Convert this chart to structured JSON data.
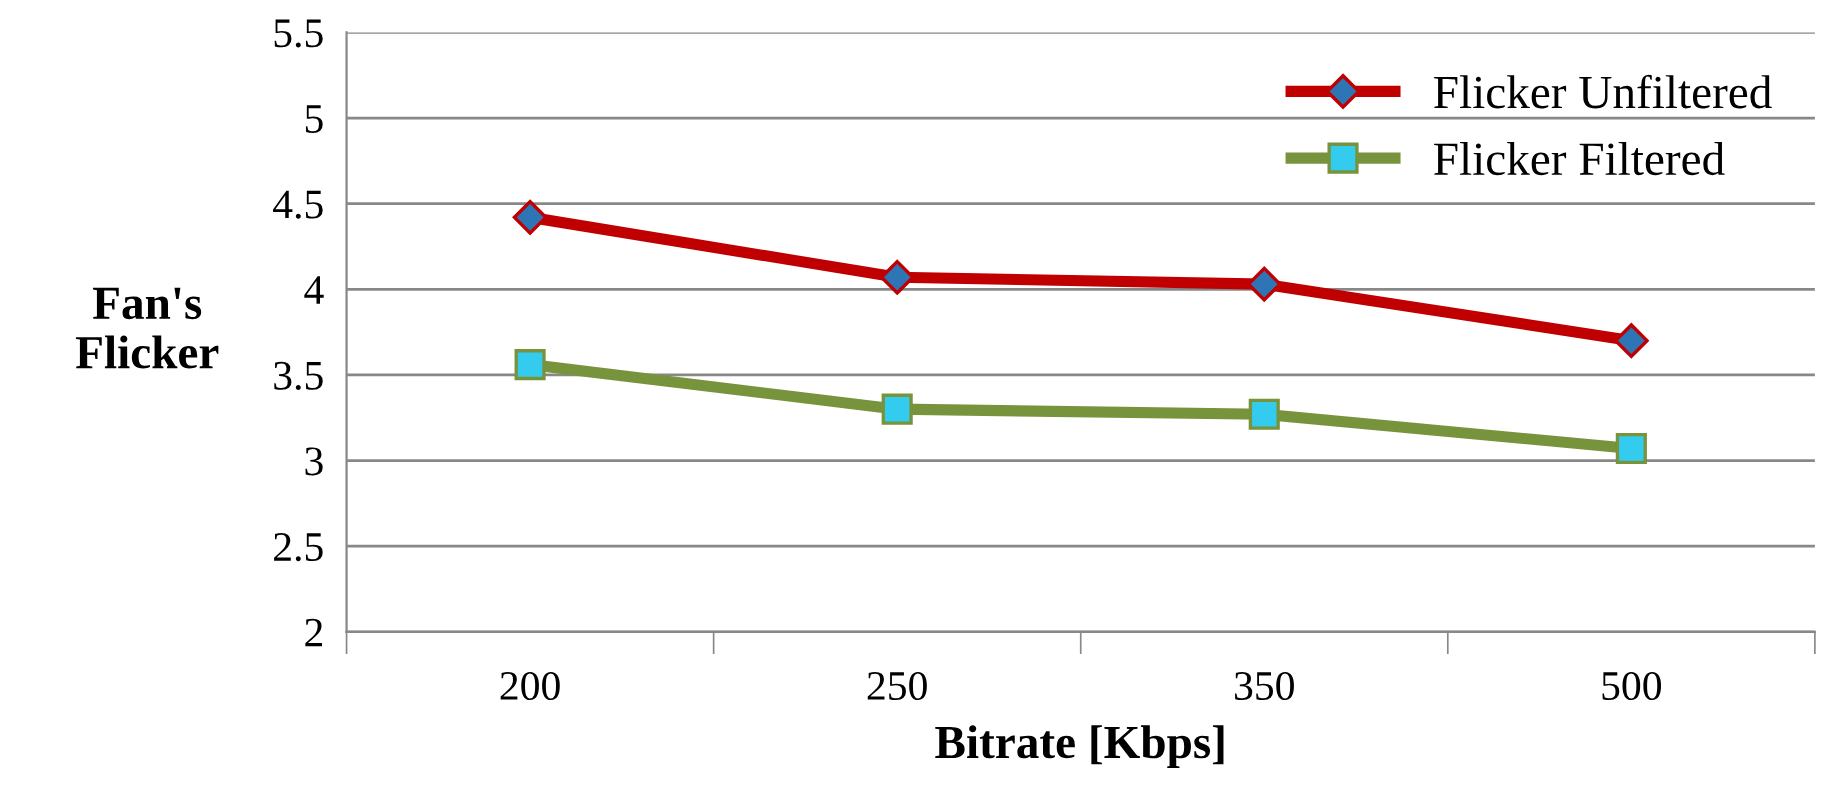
{
  "chart_data": {
    "type": "line",
    "xlabel": "Bitrate [Kbps]",
    "ylabel": "Fan's\nFlicker",
    "categories": [
      "200",
      "250",
      "350",
      "500"
    ],
    "series": [
      {
        "name": "Flicker Unfiltered",
        "color": "#c00000",
        "marker": "diamond",
        "values": [
          4.42,
          4.07,
          4.03,
          3.7
        ]
      },
      {
        "name": "Flicker Filtered",
        "color": "#77933c",
        "marker": "square",
        "values": [
          3.56,
          3.3,
          3.27,
          3.07
        ]
      }
    ],
    "ylim": [
      2,
      5.5
    ],
    "yticks": [
      2,
      2.5,
      3,
      3.5,
      4,
      4.5,
      5,
      5.5
    ],
    "grid": "y",
    "legend": "top right",
    "line_style": "solid"
  }
}
